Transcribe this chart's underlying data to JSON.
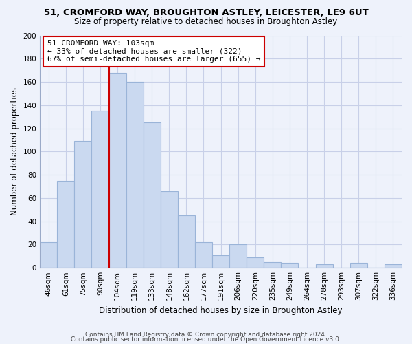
{
  "title1": "51, CROMFORD WAY, BROUGHTON ASTLEY, LEICESTER, LE9 6UT",
  "title2": "Size of property relative to detached houses in Broughton Astley",
  "xlabel": "Distribution of detached houses by size in Broughton Astley",
  "ylabel": "Number of detached properties",
  "bar_labels": [
    "46sqm",
    "61sqm",
    "75sqm",
    "90sqm",
    "104sqm",
    "119sqm",
    "133sqm",
    "148sqm",
    "162sqm",
    "177sqm",
    "191sqm",
    "206sqm",
    "220sqm",
    "235sqm",
    "249sqm",
    "264sqm",
    "278sqm",
    "293sqm",
    "307sqm",
    "322sqm",
    "336sqm"
  ],
  "bar_values": [
    22,
    75,
    109,
    135,
    168,
    160,
    125,
    66,
    45,
    22,
    11,
    20,
    9,
    5,
    4,
    0,
    3,
    0,
    4,
    0,
    3
  ],
  "bar_color": "#cad9f0",
  "bar_edge_color": "#9ab4d8",
  "highlight_line_index": 4,
  "highlight_line_color": "#cc0000",
  "annotation_line1": "51 CROMFORD WAY: 103sqm",
  "annotation_line2": "← 33% of detached houses are smaller (322)",
  "annotation_line3": "67% of semi-detached houses are larger (655) →",
  "annotation_box_color": "#ffffff",
  "annotation_box_edge": "#cc0000",
  "ylim": [
    0,
    200
  ],
  "yticks": [
    0,
    20,
    40,
    60,
    80,
    100,
    120,
    140,
    160,
    180,
    200
  ],
  "footer1": "Contains HM Land Registry data © Crown copyright and database right 2024.",
  "footer2": "Contains public sector information licensed under the Open Government Licence v3.0.",
  "bg_color": "#eef2fb",
  "grid_color": "#c8d0e8",
  "spine_color": "#9aaac8"
}
